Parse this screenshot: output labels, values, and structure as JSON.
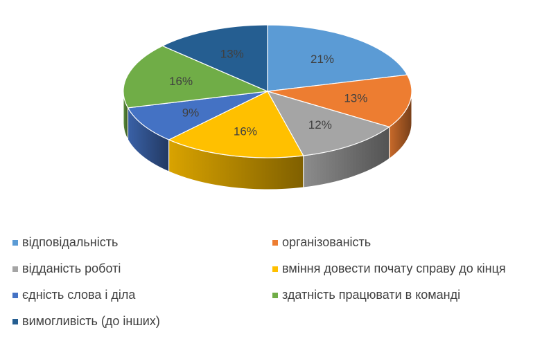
{
  "chart_data": {
    "type": "pie",
    "title": "",
    "legend_position": "bottom",
    "slices": [
      {
        "label": "відповідальність",
        "value": 21,
        "display": "21%",
        "color": "#5b9bd5"
      },
      {
        "label": "організованість",
        "value": 13,
        "display": "13%",
        "color": "#ed7d31"
      },
      {
        "label": "відданість роботі",
        "value": 12,
        "display": "12%",
        "color": "#a5a5a5"
      },
      {
        "label": "вміння довести почату справу до кінця",
        "value": 16,
        "display": "16%",
        "color": "#ffc000"
      },
      {
        "label": "єдність слова і діла",
        "value": 9,
        "display": "9%",
        "color": "#4472c4"
      },
      {
        "label": "здатність працювати в команді",
        "value": 16,
        "display": "16%",
        "color": "#70ad47"
      },
      {
        "label": "вимогливість (до інших)",
        "value": 13,
        "display": "13%",
        "color": "#255e91"
      }
    ]
  }
}
